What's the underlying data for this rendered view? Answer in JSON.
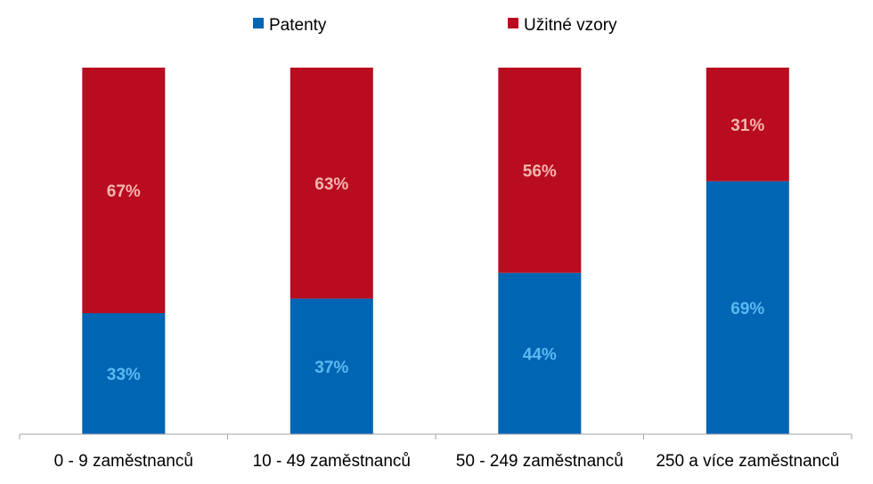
{
  "colors": {
    "patenty": "#0065B3",
    "uzitne_vzory": "#BA0C20",
    "patenty_label": "#5BB8F0",
    "uzitne_vzory_label": "#F2B6AE",
    "axis": "#A6A6A6"
  },
  "legend": {
    "items": [
      {
        "label": "Patenty",
        "color": "#0065B3"
      },
      {
        "label": "Užitné vzory",
        "color": "#BA0C20"
      }
    ],
    "placement": "top"
  },
  "chart_data": {
    "type": "bar",
    "stacked": true,
    "percent_stacked": true,
    "categories": [
      "0 - 9 zaměstnanců",
      "10 - 49 zaměstnanců",
      "50 - 249 zaměstnanců",
      "250 a více zaměstnanců"
    ],
    "series": [
      {
        "name": "Patenty",
        "values": [
          33,
          37,
          44,
          69
        ],
        "labels": [
          "33%",
          "37%",
          "44%",
          "69%"
        ]
      },
      {
        "name": "Užitné vzory",
        "values": [
          67,
          63,
          56,
          31
        ],
        "labels": [
          "67%",
          "63%",
          "56%",
          "31%"
        ]
      }
    ],
    "ylim": [
      0,
      100
    ],
    "grid": false,
    "legend_position": "top"
  }
}
